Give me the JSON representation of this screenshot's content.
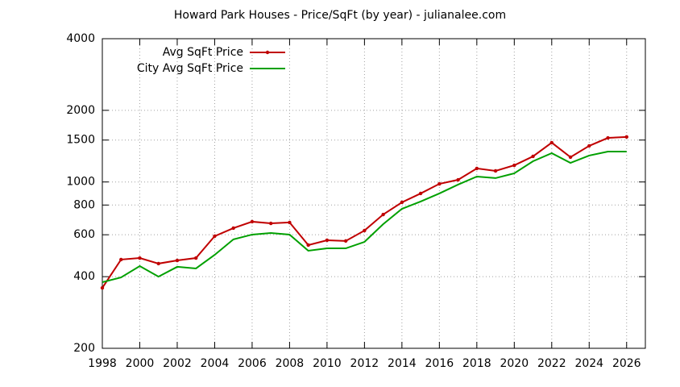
{
  "chart_data": {
    "type": "line",
    "title": "Howard Park Houses - Price/SqFt (by year) - julianalee.com",
    "x": [
      1998,
      1999,
      2000,
      2001,
      2002,
      2003,
      2004,
      2005,
      2006,
      2007,
      2008,
      2009,
      2010,
      2011,
      2012,
      2013,
      2014,
      2015,
      2016,
      2017,
      2018,
      2019,
      2020,
      2021,
      2022,
      2023,
      2024,
      2025,
      2026
    ],
    "series": [
      {
        "name": "Avg SqFt Price",
        "color": "#c00000",
        "markers": true,
        "values": [
          359,
          472,
          479,
          454,
          468,
          479,
          592,
          640,
          681,
          670,
          676,
          543,
          569,
          565,
          625,
          730,
          821,
          895,
          982,
          1021,
          1140,
          1113,
          1175,
          1281,
          1463,
          1271,
          1418,
          1532,
          1546
        ]
      },
      {
        "name": "City Avg SqFt Price",
        "color": "#00a000",
        "markers": false,
        "values": [
          379,
          397,
          443,
          400,
          440,
          433,
          494,
          574,
          601,
          610,
          601,
          514,
          526,
          526,
          560,
          665,
          771,
          828,
          895,
          975,
          1054,
          1038,
          1087,
          1222,
          1321,
          1203,
          1291,
          1342,
          1342
        ]
      }
    ],
    "xlim": [
      1998,
      2027
    ],
    "xticks": [
      1998,
      2000,
      2002,
      2004,
      2006,
      2008,
      2010,
      2012,
      2014,
      2016,
      2018,
      2020,
      2022,
      2024,
      2026
    ],
    "ylim": [
      200,
      4000
    ],
    "yticks": [
      200,
      400,
      600,
      800,
      1000,
      1500,
      2000,
      4000
    ],
    "ylog": true,
    "grid": true,
    "legend": "top-left"
  }
}
